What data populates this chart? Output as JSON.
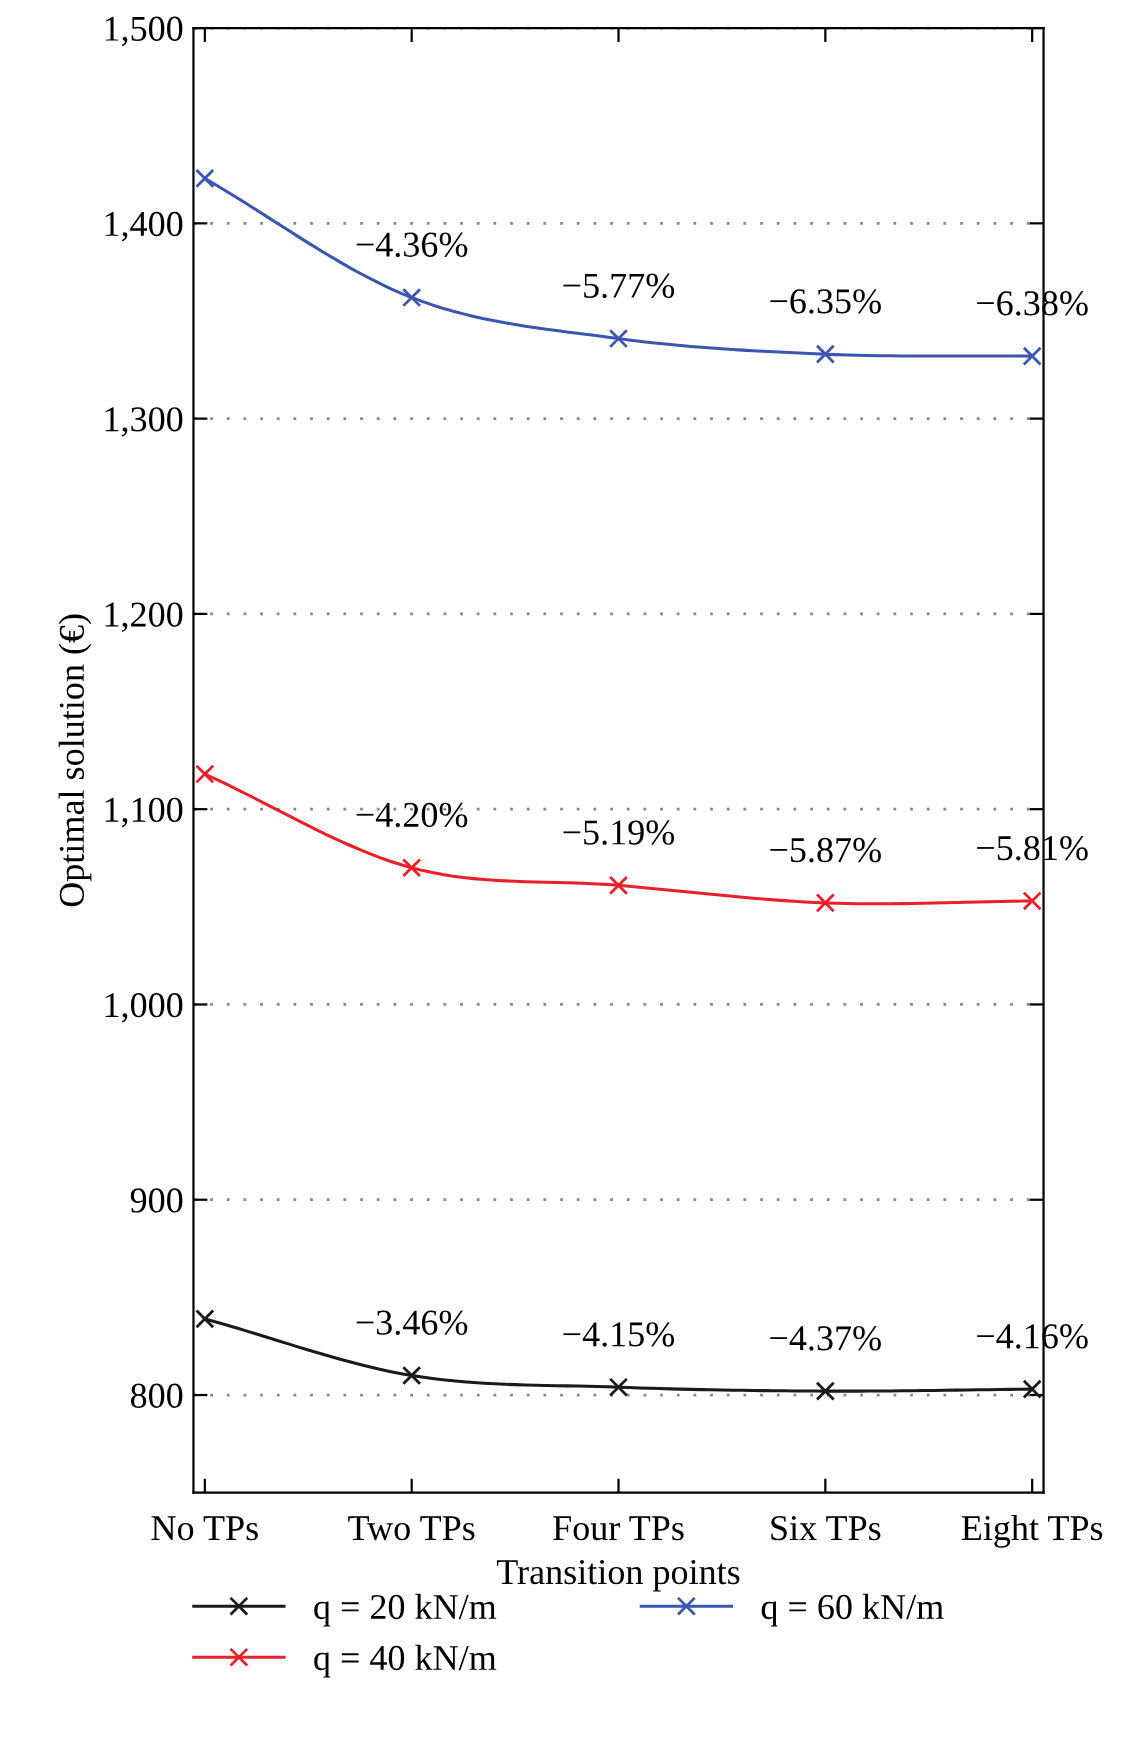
{
  "chart_data": {
    "type": "line",
    "xlabel": "Transition points",
    "ylabel": "Optimal solution (€)",
    "categories": [
      "No TPs",
      "Two TPs",
      "Four TPs",
      "Six TPs",
      "Eight TPs"
    ],
    "series": [
      {
        "name": "q = 20 kN/m",
        "color": "#1a1a1a",
        "values": [
          839,
          810,
          804,
          802,
          803
        ]
      },
      {
        "name": "q = 40 kN/m",
        "color": "#e8202a",
        "values": [
          1118,
          1070,
          1061,
          1052,
          1053
        ]
      },
      {
        "name": "q = 60 kN/m",
        "color": "#3a56b0",
        "values": [
          1423,
          1362,
          1341,
          1333,
          1332
        ]
      }
    ],
    "ylim": [
      750,
      1500
    ],
    "yticks": [
      800,
      900,
      {
        "value": 1000,
        "label": "1,000"
      },
      {
        "value": 1100,
        "label": "1,100"
      },
      {
        "value": 1200,
        "label": "1,200"
      },
      {
        "value": 1300,
        "label": "1,300"
      },
      {
        "value": 1400,
        "label": "1,400"
      },
      {
        "value": 1500,
        "label": "1,500"
      }
    ],
    "grid": "y",
    "legend": "bottom",
    "marker": "cross",
    "line_style": "solid",
    "annotations": [
      {
        "text": "−3.46%",
        "x": "Two TPs",
        "y": 810
      },
      {
        "text": "−4.15%",
        "x": "Four TPs",
        "y": 804
      },
      {
        "text": "−4.37%",
        "x": "Six TPs",
        "y": 802
      },
      {
        "text": "−4.16%",
        "x": "Eight TPs",
        "y": 803
      },
      {
        "text": "−4.20%",
        "x": "Two TPs",
        "y": 1070
      },
      {
        "text": "−5.19%",
        "x": "Four TPs",
        "y": 1061
      },
      {
        "text": "−5.87%",
        "x": "Six TPs",
        "y": 1052
      },
      {
        "text": "−5.81%",
        "x": "Eight TPs",
        "y": 1053
      },
      {
        "text": "−4.36%",
        "x": "Two TPs",
        "y": 1362
      },
      {
        "text": "−5.77%",
        "x": "Four TPs",
        "y": 1341
      },
      {
        "text": "−6.35%",
        "x": "Six TPs",
        "y": 1333
      },
      {
        "text": "−6.38%",
        "x": "Eight TPs",
        "y": 1332
      }
    ]
  }
}
